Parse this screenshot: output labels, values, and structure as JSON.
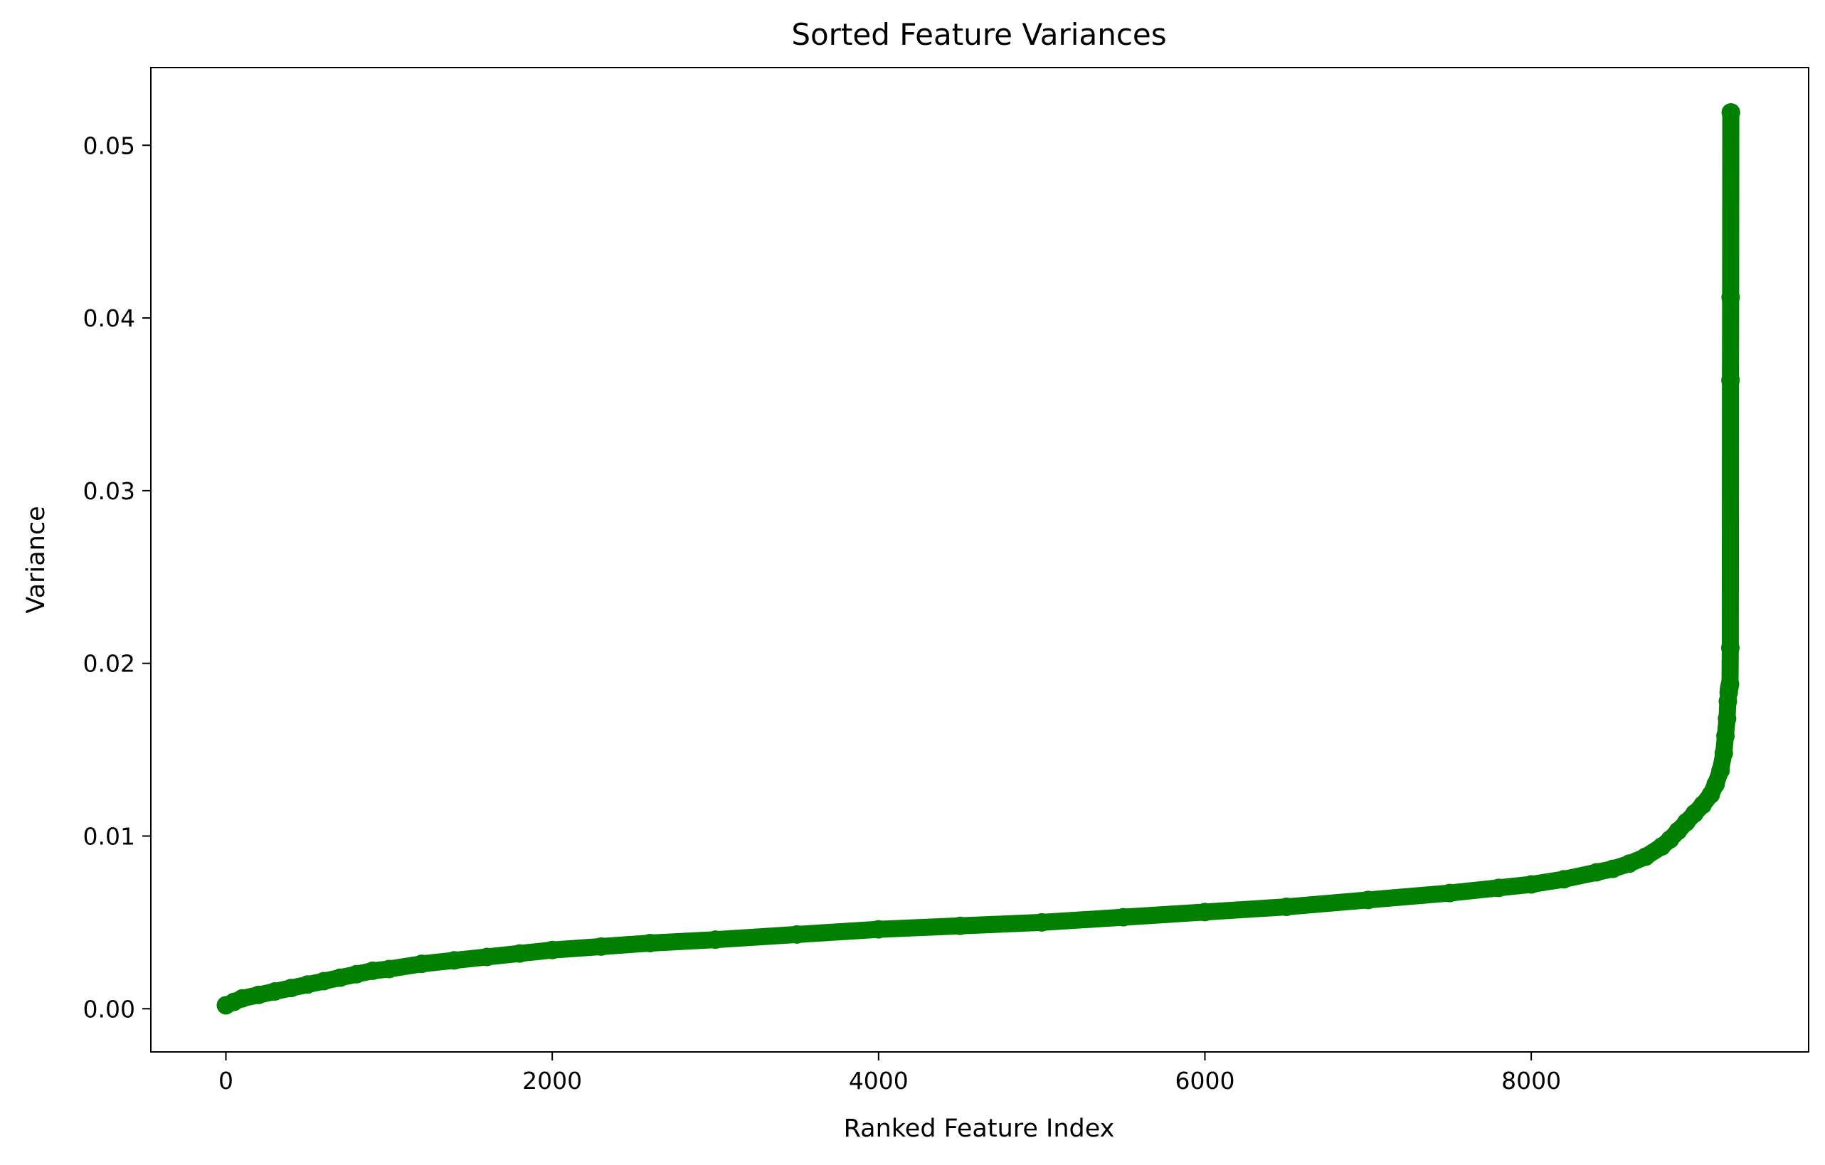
{
  "chart_data": {
    "type": "line",
    "title": "Sorted Feature Variances",
    "xlabel": "Ranked Feature Index",
    "ylabel": "Variance",
    "xlim": [
      -460,
      9700
    ],
    "ylim": [
      -0.0025,
      0.0545
    ],
    "x_ticks": [
      0,
      2000,
      4000,
      6000,
      8000
    ],
    "x_tick_labels": [
      "0",
      "2000",
      "4000",
      "6000",
      "8000"
    ],
    "y_ticks": [
      0.0,
      0.01,
      0.02,
      0.03,
      0.04,
      0.05
    ],
    "y_tick_labels": [
      "0.00",
      "0.01",
      "0.02",
      "0.03",
      "0.04",
      "0.05"
    ],
    "grid": false,
    "legend": false,
    "marker": "o",
    "color": "#008000",
    "series": [
      {
        "x": [
          0,
          50,
          100,
          200,
          300,
          400,
          500,
          600,
          700,
          800,
          900,
          1000,
          1200,
          1400,
          1600,
          1800,
          2000,
          2300,
          2600,
          3000,
          3500,
          4000,
          4500,
          5000,
          5500,
          6000,
          6500,
          7000,
          7500,
          7800,
          8000,
          8200,
          8400,
          8500,
          8600,
          8700,
          8800,
          8850,
          8900,
          8950,
          9000,
          9050,
          9100,
          9130,
          9160,
          9180,
          9190,
          9200,
          9205,
          9210,
          9212,
          9214,
          9216,
          9218,
          9220,
          9221,
          9222,
          9223,
          9224
        ],
        "y": [
          0.0002,
          0.0004,
          0.0006,
          0.0008,
          0.001,
          0.0012,
          0.0014,
          0.0016,
          0.0018,
          0.002,
          0.0022,
          0.0023,
          0.0026,
          0.0028,
          0.003,
          0.0032,
          0.0034,
          0.0036,
          0.0038,
          0.004,
          0.0043,
          0.0046,
          0.0048,
          0.005,
          0.0053,
          0.0056,
          0.0059,
          0.0063,
          0.0067,
          0.007,
          0.0072,
          0.0075,
          0.0079,
          0.0081,
          0.0084,
          0.0088,
          0.0094,
          0.0098,
          0.0103,
          0.0108,
          0.0113,
          0.0118,
          0.0124,
          0.013,
          0.0138,
          0.0148,
          0.0158,
          0.0168,
          0.0178,
          0.0183,
          0.0185,
          0.0186,
          0.0187,
          0.0188,
          0.0209,
          0.0364,
          0.0412,
          0.0519,
          0.0519
        ]
      }
    ]
  }
}
